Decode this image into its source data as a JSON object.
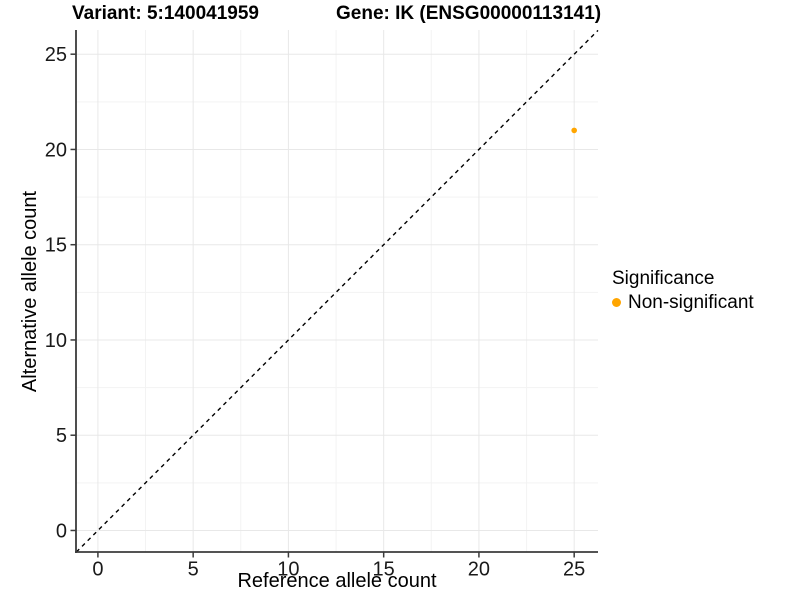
{
  "title": {
    "variant": "Variant: 5:140041959",
    "gene": "Gene: IK (ENSG00000113141)"
  },
  "axes": {
    "x_label": "Reference allele count",
    "y_label": "Alternative allele count"
  },
  "legend": {
    "title": "Significance",
    "items": [
      {
        "label": "Non-significant",
        "color": "#FFA500"
      }
    ]
  },
  "chart_data": {
    "type": "scatter",
    "title": "Variant: 5:140041959    Gene: IK (ENSG00000113141)",
    "xlabel": "Reference allele count",
    "ylabel": "Alternative allele count",
    "xlim": [
      -1.15,
      26.25
    ],
    "ylim": [
      -1.13,
      26.27
    ],
    "x_ticks": [
      0,
      5,
      10,
      15,
      20,
      25
    ],
    "y_ticks": [
      0,
      5,
      10,
      15,
      20,
      25
    ],
    "x_minor_ticks": [
      2.5,
      7.5,
      12.5,
      17.5,
      22.5
    ],
    "y_minor_ticks": [
      2.5,
      7.5,
      12.5,
      17.5,
      22.5
    ],
    "grid": true,
    "legend_position": "right",
    "series": [
      {
        "name": "Non-significant",
        "color": "#FFA500",
        "points": [
          {
            "x": 25,
            "y": 21
          }
        ]
      }
    ],
    "reference_line": {
      "type": "identity",
      "style": "dashed",
      "color": "#000000"
    },
    "style": {
      "major_grid_color": "#E8E8E8",
      "minor_grid_color": "#F3F3F3",
      "axis_color": "#3B3B3B",
      "tick_text_color": "#1A1A1A",
      "background": "#FFFFFF"
    }
  }
}
